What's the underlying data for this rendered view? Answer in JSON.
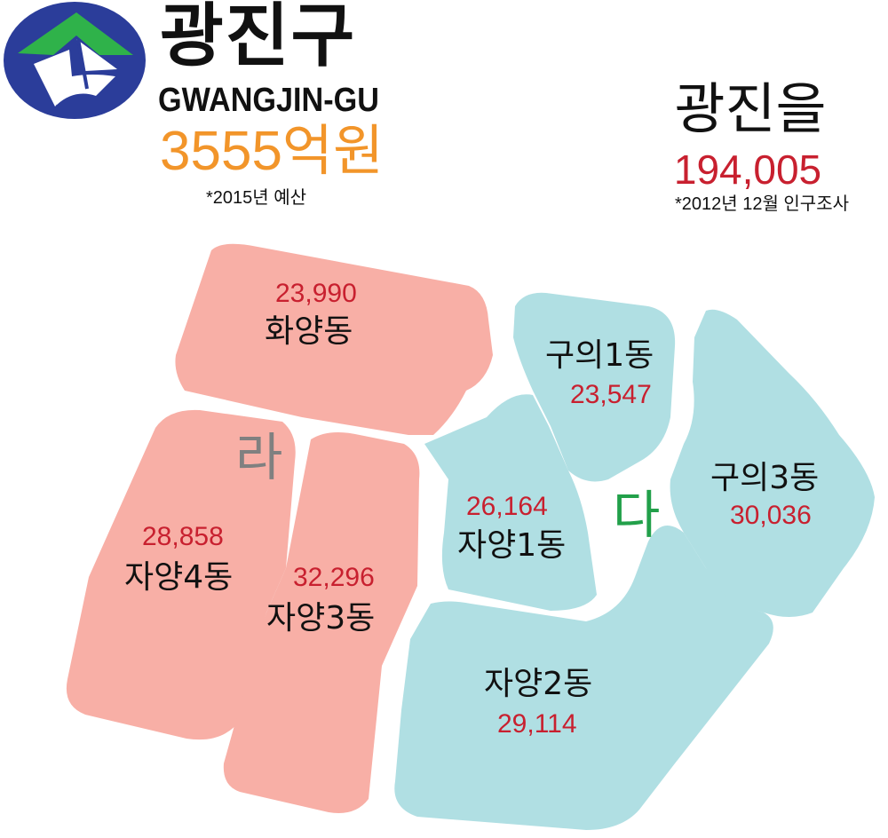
{
  "header": {
    "title_ko": "광진구",
    "title_en": "GWANGJIN-GU",
    "budget": "3555억원",
    "budget_note": "*2015년 예산"
  },
  "district_info": {
    "name": "광진을",
    "population": "194,005",
    "note": "*2012년 12월 인구조사"
  },
  "colors": {
    "zone_ra_fill": "#f8afa6",
    "zone_da_fill": "#b0dfe3",
    "zone_ra_label": "#808080",
    "zone_da_label": "#22a04a",
    "number_red": "#c8202f",
    "budget_orange": "#f2952a",
    "logo_blue": "#2b3d9a",
    "logo_green": "#2fb24a"
  },
  "logo": {
    "icon": "gwangjin-gu-emblem-icon"
  },
  "map": {
    "zones": [
      {
        "label": "라"
      },
      {
        "label": "다"
      }
    ],
    "dongs": [
      {
        "name": "화양동",
        "population": "23,990"
      },
      {
        "name": "자양4동",
        "population": "28,858"
      },
      {
        "name": "자양3동",
        "population": "32,296"
      },
      {
        "name": "구의1동",
        "population": "23,547"
      },
      {
        "name": "자양1동",
        "population": "26,164"
      },
      {
        "name": "구의3동",
        "population": "30,036"
      },
      {
        "name": "자양2동",
        "population": "29,114"
      }
    ]
  }
}
